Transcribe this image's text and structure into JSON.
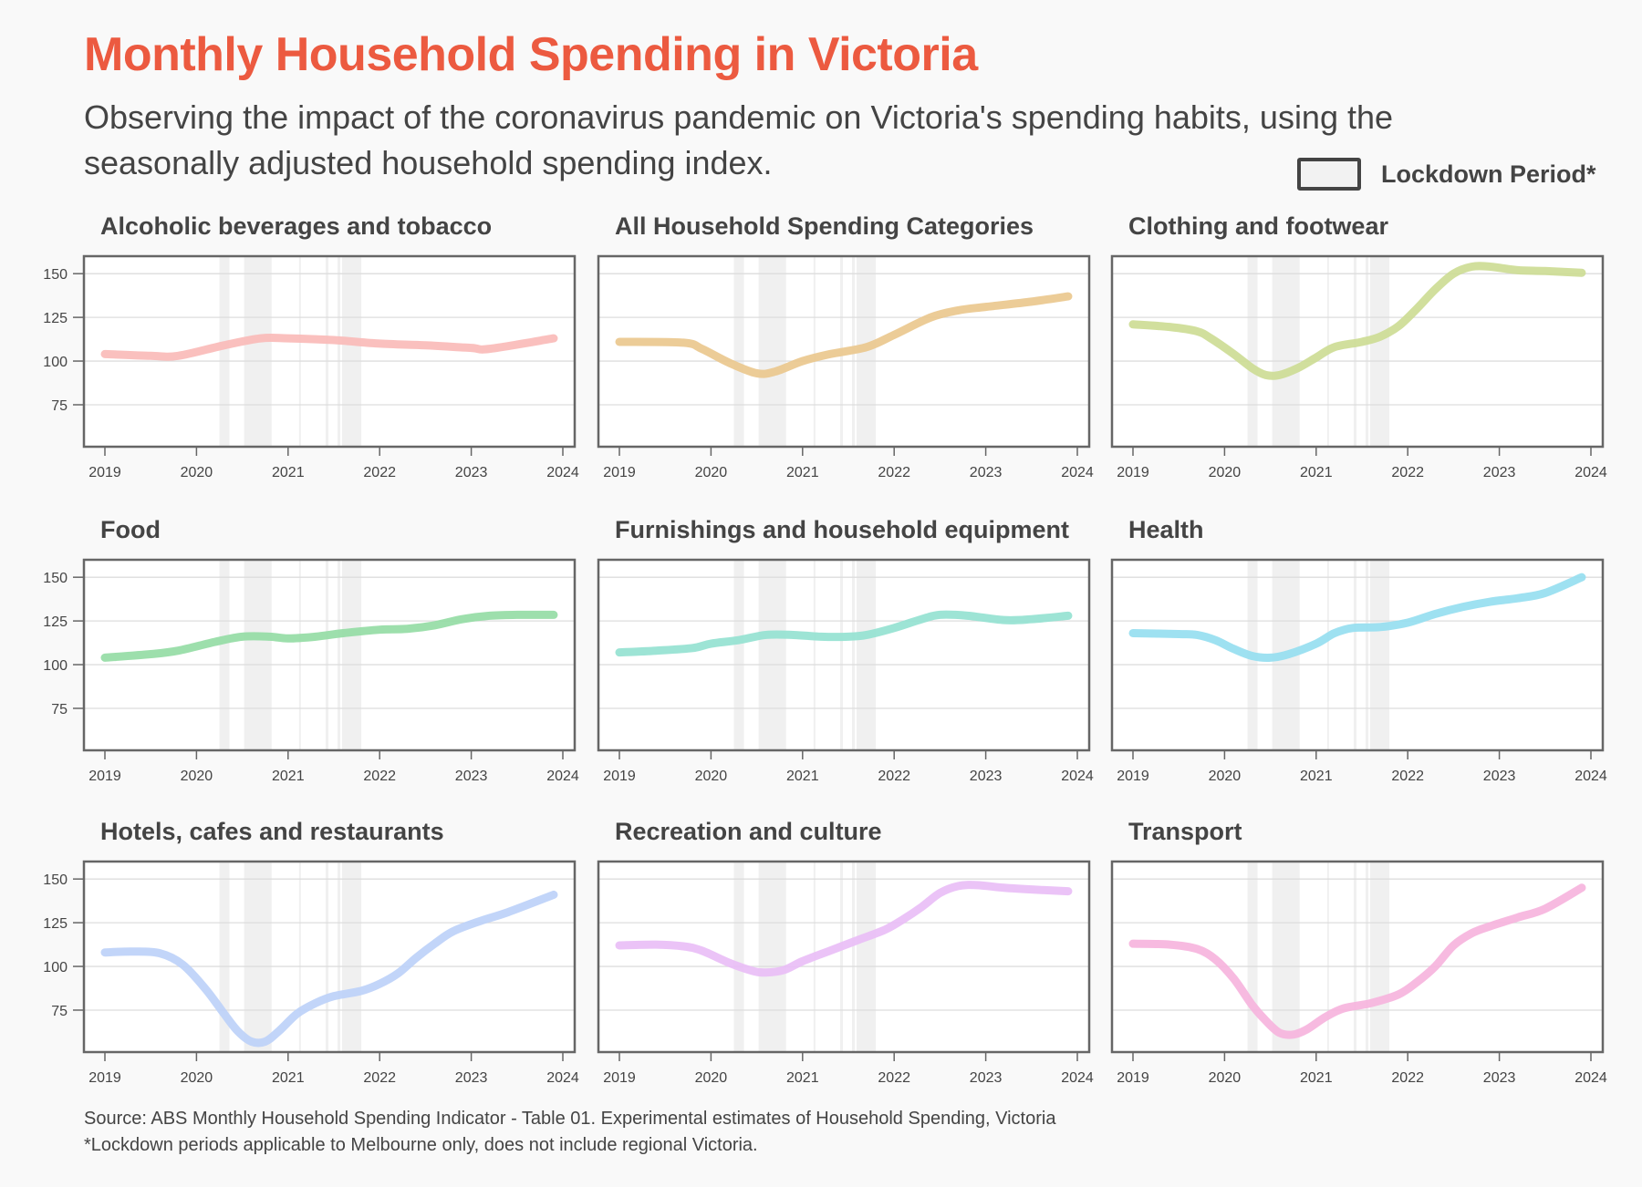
{
  "header": {
    "title": "Monthly Household Spending in Victoria",
    "subtitle": "Observing the impact of the coronavirus pandemic on Victoria's spending habits, using the seasonally adjusted household spending index.",
    "legend_label": "Lockdown Period*"
  },
  "footer": {
    "source": "Source: ABS Monthly Household Spending Indicator - Table 01. Experimental estimates of Household Spending, Victoria",
    "note": "*Lockdown periods applicable to Melbourne only, does not include regional Victoria."
  },
  "colors": {
    "title": "#ec5a40",
    "lockdown": "#f0f0f0",
    "grid": "#dddddd",
    "frame": "#666666"
  },
  "chart_data": {
    "type": "line",
    "xlabel": "",
    "ylabel": "",
    "xlim": [
      2018.77,
      2024.25
    ],
    "ylim": [
      51,
      160
    ],
    "x_ticks": [
      "2019",
      "2020",
      "2021",
      "2022",
      "2023",
      "2024"
    ],
    "y_ticks": [
      "75",
      "100",
      "125",
      "150"
    ],
    "grid": true,
    "legend": "top-right",
    "lockdowns": [
      [
        2020.25,
        2020.36
      ],
      [
        2020.52,
        2020.82
      ],
      [
        2021.12,
        2021.13
      ],
      [
        2021.41,
        2021.44
      ],
      [
        2021.54,
        2021.57
      ],
      [
        2021.59,
        2021.8
      ]
    ],
    "panels": [
      {
        "title": "Alcoholic beverages and tobacco",
        "color": "#f9b9b7",
        "x": [
          2019,
          2019.5,
          2019.8,
          2020.3,
          2020.7,
          2021.0,
          2021.5,
          2022.0,
          2022.5,
          2023.0,
          2023.2,
          2023.9
        ],
        "y": [
          104,
          103,
          103,
          109,
          113,
          113,
          112,
          110,
          109,
          107.5,
          107,
          113
        ]
      },
      {
        "title": "All Household Spending Categories",
        "color": "#eac68c",
        "x": [
          2019,
          2019.7,
          2019.9,
          2020.2,
          2020.5,
          2020.7,
          2021.0,
          2021.3,
          2021.7,
          2022.0,
          2022.4,
          2022.7,
          2023.0,
          2023.5,
          2023.9
        ],
        "y": [
          111,
          110.5,
          107,
          99,
          93,
          94,
          100,
          104,
          108,
          115,
          125,
          129,
          131,
          134,
          137
        ]
      },
      {
        "title": "Clothing and footwear",
        "color": "#ccdc92",
        "x": [
          2019,
          2019.4,
          2019.7,
          2019.85,
          2020.1,
          2020.3,
          2020.45,
          2020.6,
          2020.8,
          2021.0,
          2021.2,
          2021.5,
          2021.7,
          2021.9,
          2022.1,
          2022.3,
          2022.5,
          2022.7,
          2022.9,
          2023.2,
          2023.5,
          2023.9
        ],
        "y": [
          121,
          119.5,
          117,
          113,
          104,
          96,
          92,
          92,
          96,
          102,
          108,
          111,
          114,
          120,
          130,
          141,
          150,
          154,
          154,
          152,
          151.5,
          150.5
        ]
      },
      {
        "title": "Food",
        "color": "#92dca3",
        "x": [
          2019,
          2019.5,
          2019.8,
          2020.2,
          2020.5,
          2020.8,
          2021.0,
          2021.3,
          2021.6,
          2022.0,
          2022.3,
          2022.6,
          2022.9,
          2023.2,
          2023.5,
          2023.9
        ],
        "y": [
          104,
          106,
          108,
          113,
          116,
          116,
          115,
          116,
          118,
          120,
          120.5,
          122.5,
          126,
          128,
          128.5,
          128.5
        ]
      },
      {
        "title": "Furnishings and household equipment",
        "color": "#92e1d0",
        "x": [
          2019,
          2019.4,
          2019.8,
          2020.0,
          2020.3,
          2020.6,
          2020.9,
          2021.2,
          2021.5,
          2021.7,
          2022.0,
          2022.3,
          2022.5,
          2022.8,
          2023.2,
          2023.5,
          2023.9
        ],
        "y": [
          107,
          108,
          109.5,
          112,
          114,
          117,
          117,
          116,
          116,
          117,
          121,
          126,
          128.5,
          128,
          125.5,
          126,
          128
        ]
      },
      {
        "title": "Health",
        "color": "#94def0",
        "x": [
          2019,
          2019.5,
          2019.7,
          2019.9,
          2020.1,
          2020.3,
          2020.5,
          2020.7,
          2021.0,
          2021.2,
          2021.4,
          2021.7,
          2022.0,
          2022.3,
          2022.6,
          2022.9,
          2023.2,
          2023.5,
          2023.9
        ],
        "y": [
          118,
          117.5,
          117,
          114,
          109,
          105,
          104,
          106,
          112,
          118,
          121,
          121.5,
          124,
          129,
          133,
          136,
          138,
          141,
          150
        ]
      },
      {
        "title": "Hotels, cafes and restaurants",
        "color": "#bbd0f8",
        "x": [
          2019,
          2019.3,
          2019.6,
          2019.85,
          2020.1,
          2020.3,
          2020.45,
          2020.6,
          2020.75,
          2020.9,
          2021.1,
          2021.3,
          2021.5,
          2021.8,
          2022.0,
          2022.2,
          2022.4,
          2022.6,
          2022.8,
          2023.1,
          2023.4,
          2023.9
        ],
        "y": [
          108,
          108.5,
          107.5,
          101,
          87,
          73,
          63,
          57,
          57,
          63,
          73,
          79,
          83,
          86,
          90,
          96,
          105,
          113,
          120,
          126,
          131,
          141
        ]
      },
      {
        "title": "Recreation and culture",
        "color": "#e9bdf6",
        "x": [
          2019,
          2019.4,
          2019.7,
          2019.9,
          2020.2,
          2020.45,
          2020.6,
          2020.8,
          2021.0,
          2021.3,
          2021.6,
          2021.9,
          2022.1,
          2022.3,
          2022.5,
          2022.7,
          2022.9,
          2023.2,
          2023.5,
          2023.9
        ],
        "y": [
          112,
          112.5,
          111.5,
          109,
          102,
          97.5,
          96.5,
          98,
          103,
          109,
          115,
          121,
          127,
          134,
          142,
          146,
          146.5,
          145,
          144,
          143
        ]
      },
      {
        "title": "Transport",
        "color": "#f6b3dd",
        "x": [
          2019,
          2019.4,
          2019.7,
          2019.9,
          2020.1,
          2020.3,
          2020.45,
          2020.6,
          2020.75,
          2020.9,
          2021.1,
          2021.3,
          2021.6,
          2021.9,
          2022.1,
          2022.3,
          2022.5,
          2022.7,
          2022.9,
          2023.2,
          2023.5,
          2023.9
        ],
        "y": [
          113,
          112.5,
          110,
          104,
          93,
          78,
          69,
          62,
          61,
          64,
          71,
          76,
          79,
          84,
          91,
          100,
          112,
          119,
          123,
          128,
          133,
          145
        ]
      }
    ]
  }
}
